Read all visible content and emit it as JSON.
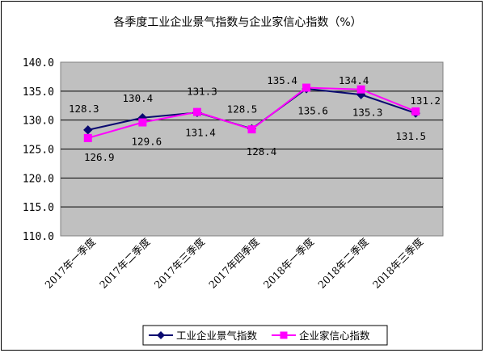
{
  "chart_data": {
    "type": "line",
    "title": "各季度工业企业景气指数与企业家信心指数（%）",
    "categories": [
      "2017年一季度",
      "2017年二季度",
      "2017年三季度",
      "2017年四季度",
      "2018年一季度",
      "2018年二季度",
      "2018年三季度"
    ],
    "yticks": [
      "110.0",
      "115.0",
      "120.0",
      "125.0",
      "130.0",
      "135.0",
      "140.0"
    ],
    "ylim": [
      110,
      140
    ],
    "grid": true,
    "legend_position": "bottom",
    "series": [
      {
        "name": "工业企业景气指数",
        "color": "#0a0a70",
        "marker": "diamond",
        "values": [
          128.3,
          130.4,
          131.3,
          128.5,
          135.4,
          134.4,
          131.2
        ],
        "labels": [
          "128.3",
          "130.4",
          "131.3",
          "128.5",
          "135.4",
          "134.4",
          "131.2"
        ]
      },
      {
        "name": "企业家信心指数",
        "color": "#ff00ff",
        "marker": "square",
        "values": [
          126.9,
          129.6,
          131.4,
          128.4,
          135.6,
          135.3,
          131.5
        ],
        "labels": [
          "126.9",
          "129.6",
          "131.4",
          "128.4",
          "135.6",
          "135.3",
          "131.5"
        ]
      }
    ]
  }
}
